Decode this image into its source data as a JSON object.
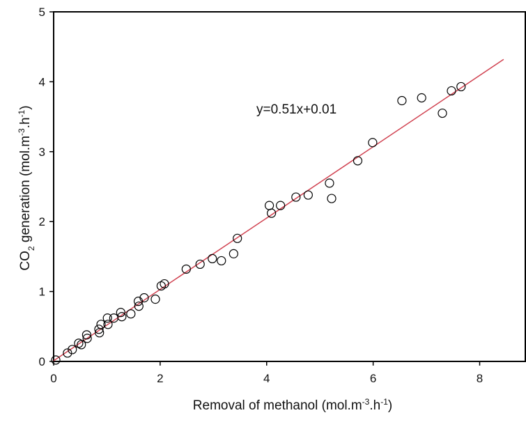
{
  "chart_data": {
    "type": "scatter",
    "x_label": [
      "Removal of methanol (mol.m",
      "-3",
      ".h",
      "-1",
      ")"
    ],
    "y_label": [
      "CO",
      "2",
      " generation  (mol.m",
      "-3",
      ".h",
      "-1",
      ")"
    ],
    "xlim": [
      0,
      8.87
    ],
    "ylim": [
      0,
      5
    ],
    "xticks": [
      0,
      2,
      4,
      6,
      8
    ],
    "yticks": [
      0,
      1,
      2,
      3,
      4,
      5
    ],
    "series": [
      {
        "color": "#000000",
        "x": [
          0.04,
          0.26,
          0.35,
          0.47,
          0.52,
          0.62,
          0.63,
          0.85,
          0.89,
          0.86,
          1.01,
          1.02,
          1.13,
          1.26,
          1.28,
          1.45,
          1.59,
          1.6,
          1.7,
          1.91,
          2.02,
          2.08,
          2.49,
          2.75,
          2.98,
          3.15,
          3.38,
          3.45,
          4.05,
          4.09,
          4.26,
          4.55,
          4.78,
          5.18,
          5.22,
          5.71,
          5.99,
          6.54,
          6.91,
          7.3,
          7.47,
          7.65
        ],
        "values": [
          0.02,
          0.12,
          0.17,
          0.26,
          0.24,
          0.38,
          0.33,
          0.46,
          0.53,
          0.41,
          0.62,
          0.53,
          0.62,
          0.7,
          0.64,
          0.68,
          0.86,
          0.79,
          0.91,
          0.89,
          1.08,
          1.11,
          1.32,
          1.39,
          1.47,
          1.44,
          1.54,
          1.76,
          2.23,
          2.12,
          2.23,
          2.35,
          2.38,
          2.55,
          2.33,
          2.87,
          3.13,
          3.73,
          3.77,
          3.55,
          3.87,
          3.93
        ]
      }
    ],
    "fit_line": {
      "x": [
        0,
        8.45
      ],
      "values": [
        0.01,
        4.32
      ],
      "color": "#d0404f",
      "label": "y=0.51x+0.01"
    }
  }
}
